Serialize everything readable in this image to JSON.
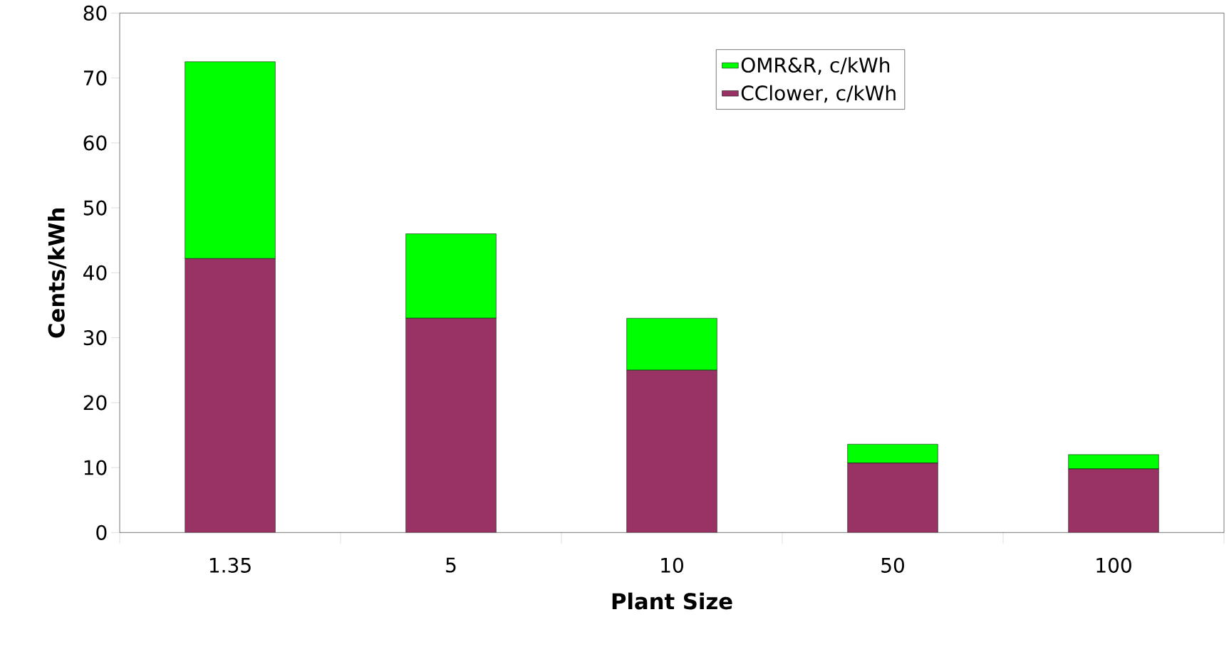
{
  "chart_data": {
    "type": "bar",
    "stacked": true,
    "xlabel": "Plant Size",
    "ylabel": "Cents/kWh",
    "categories": [
      "1.35",
      "5",
      "10",
      "50",
      "100"
    ],
    "series": [
      {
        "name": "CClower, c/kWh",
        "color": "#993366",
        "values": [
          42.2,
          33,
          25,
          10.7,
          9.8
        ]
      },
      {
        "name": "OMR&R, c/kWh",
        "color": "#00ff00",
        "values": [
          30.3,
          13,
          8,
          2.9,
          2.2
        ]
      }
    ],
    "ylim": [
      0,
      80
    ],
    "yticks": [
      0,
      10,
      20,
      30,
      40,
      50,
      60,
      70,
      80
    ],
    "grid": false,
    "legend": "top right"
  }
}
